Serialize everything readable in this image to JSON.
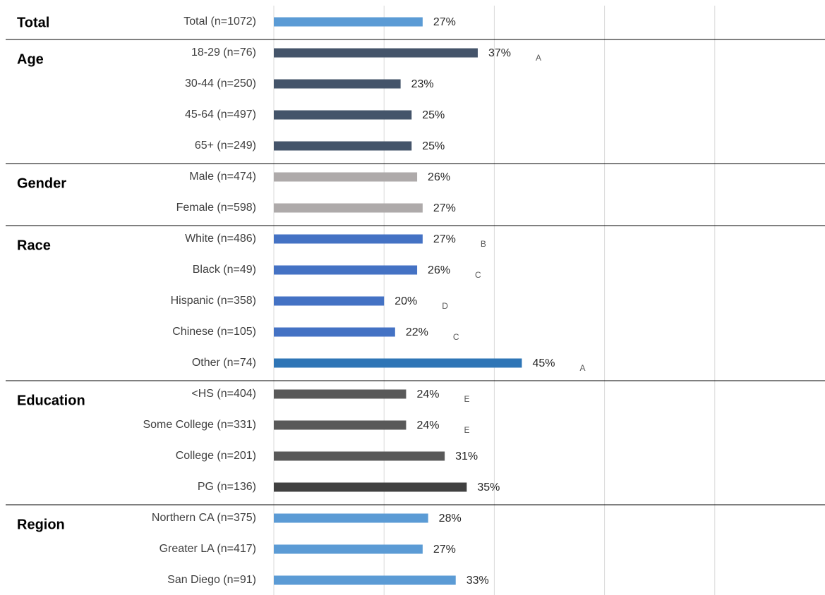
{
  "chart_data": {
    "type": "grouped-bar",
    "orientation": "horizontal",
    "xlim": [
      0,
      100
    ],
    "xticks": [
      0,
      20,
      40,
      60,
      80
    ],
    "grid": true,
    "groups": [
      {
        "name": "Total",
        "categories": [
          "Total (n=1072)"
        ],
        "values": [
          27
        ],
        "value_labels": [
          "27%"
        ],
        "letters": [
          null
        ],
        "colors": [
          "#5b9bd5"
        ]
      },
      {
        "name": "Age",
        "categories": [
          "18-29 (n=76)",
          "30-44 (n=250)",
          "45-64 (n=497)",
          "65+ (n=249)"
        ],
        "values": [
          37,
          23,
          25,
          25
        ],
        "value_labels": [
          "37%",
          "23%",
          "25%",
          "25%"
        ],
        "letters": [
          "A",
          null,
          null,
          null
        ],
        "colors": [
          "#44546a",
          "#44546a",
          "#44546a",
          "#44546a"
        ]
      },
      {
        "name": "Gender",
        "categories": [
          "Male (n=474)",
          "Female (n=598)"
        ],
        "values": [
          26,
          27
        ],
        "value_labels": [
          "26%",
          "27%"
        ],
        "letters": [
          null,
          null
        ],
        "colors": [
          "#aeaaaa",
          "#aeaaaa"
        ]
      },
      {
        "name": "Race",
        "categories": [
          "White (n=486)",
          "Black (n=49)",
          "Hispanic (n=358)",
          "Chinese (n=105)",
          "Other (n=74)"
        ],
        "values": [
          27,
          26,
          20,
          22,
          45
        ],
        "value_labels": [
          "27%",
          "26%",
          "20%",
          "22%",
          "45%"
        ],
        "letters": [
          "B",
          "C",
          "D",
          "C",
          "A"
        ],
        "colors": [
          "#4472c4",
          "#4472c4",
          "#4472c4",
          "#4472c4",
          "#2e75b6"
        ]
      },
      {
        "name": "Education",
        "categories": [
          "<HS (n=404)",
          "Some College (n=331)",
          "College (n=201)",
          "PG (n=136)"
        ],
        "values": [
          24,
          24,
          31,
          35
        ],
        "value_labels": [
          "24%",
          "24%",
          "31%",
          "35%"
        ],
        "letters": [
          "E",
          "E",
          null,
          null
        ],
        "colors": [
          "#595959",
          "#595959",
          "#595959",
          "#404040"
        ]
      },
      {
        "name": "Region",
        "categories": [
          "Northern CA (n=375)",
          "Greater LA (n=417)",
          "San Diego (n=91)"
        ],
        "values": [
          28,
          27,
          33
        ],
        "value_labels": [
          "28%",
          "27%",
          "33%"
        ],
        "letters": [
          null,
          null,
          null
        ],
        "colors": [
          "#5b9bd5",
          "#5b9bd5",
          "#5b9bd5"
        ]
      }
    ]
  }
}
